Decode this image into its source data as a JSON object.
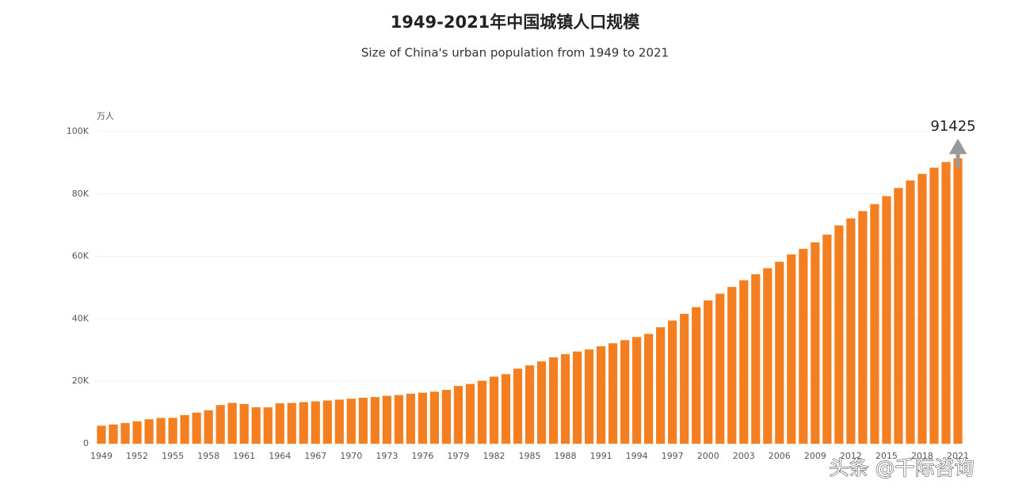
{
  "chart_data": {
    "type": "bar",
    "title": "1949-2021年中国城镇人口规模",
    "subtitle": "Size of China's urban population from 1949 to 2021",
    "y_label": "万人",
    "annotation": "91425",
    "watermark": "头条 @千际咨询",
    "color": "#f47f20",
    "grid": true,
    "ylim": [
      0,
      100000
    ],
    "yticks": [
      0,
      {
        "value": 20000,
        "label": "20K"
      },
      {
        "value": 40000,
        "label": "40K"
      },
      {
        "value": 60000,
        "label": "60K"
      },
      {
        "value": 80000,
        "label": "80K"
      },
      {
        "value": 100000,
        "label": "100K"
      }
    ],
    "categories": [
      "1949",
      null,
      null,
      "1952",
      null,
      null,
      "1955",
      null,
      null,
      "1958",
      null,
      null,
      "1961",
      null,
      null,
      "1964",
      null,
      null,
      "1967",
      null,
      null,
      "1970",
      null,
      null,
      "1973",
      null,
      null,
      "1976",
      null,
      null,
      "1979",
      null,
      null,
      "1982",
      null,
      null,
      "1985",
      null,
      null,
      "1988",
      null,
      null,
      "1991",
      null,
      null,
      "1994",
      null,
      null,
      "1997",
      null,
      null,
      "2000",
      null,
      null,
      "2003",
      null,
      null,
      "2006",
      null,
      null,
      "2009",
      null,
      null,
      "2012",
      null,
      null,
      "2015",
      null,
      null,
      "2018",
      null,
      null,
      "2021"
    ],
    "values": [
      5765,
      6169,
      6632,
      7163,
      7826,
      8249,
      8285,
      9185,
      9949,
      10721,
      12371,
      13073,
      12707,
      11659,
      11646,
      12950,
      13045,
      13313,
      13548,
      13838,
      14117,
      14424,
      14711,
      14935,
      15345,
      15595,
      16030,
      16341,
      16669,
      17245,
      18495,
      19140,
      20171,
      21480,
      22274,
      24017,
      25094,
      26366,
      27674,
      28661,
      29540,
      30195,
      31203,
      32175,
      33173,
      34169,
      35174,
      37304,
      39449,
      41608,
      43748,
      45906,
      48064,
      50212,
      52376,
      54283,
      56212,
      58288,
      60633,
      62403,
      64512,
      66978,
      69927,
      72175,
      74502,
      76738,
      79302,
      81924,
      84343,
      86433,
      88426,
      90220,
      91425
    ]
  }
}
